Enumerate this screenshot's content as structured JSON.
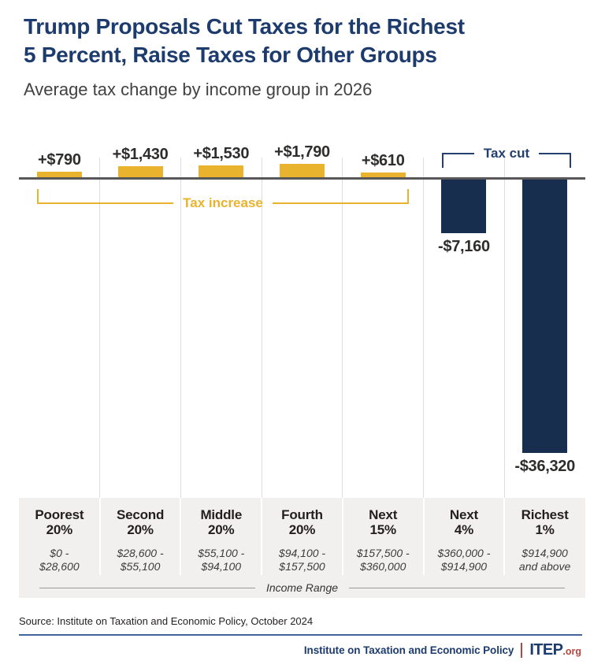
{
  "header": {
    "title_line1": "Trump Proposals Cut Taxes for the Richest",
    "title_line2": "5 Percent, Raise Taxes for Other Groups",
    "subtitle": "Average tax change by income group in 2026"
  },
  "chart_data": {
    "type": "bar",
    "title": "Average tax change by income group in 2026",
    "xlabel": "Income Range",
    "ylabel": "",
    "ylim": [
      -36320,
      1790
    ],
    "baseline": 0,
    "grid": "vertical-column-separators",
    "legend": "none",
    "categories": [
      "Poorest 20%",
      "Second 20%",
      "Middle 20%",
      "Fourth 20%",
      "Next 15%",
      "Next 4%",
      "Richest 1%"
    ],
    "values": [
      790,
      1430,
      1530,
      1790,
      610,
      -7160,
      -36320
    ],
    "value_labels": [
      "+$790",
      "+$1,430",
      "+$1,530",
      "+$1,790",
      "+$610",
      "-$7,160",
      "-$36,320"
    ],
    "income_ranges": [
      "$0 - $28,600",
      "$28,600 - $55,100",
      "$55,100 - $94,100",
      "$94,100 - $157,500",
      "$157,500 - $360,000",
      "$360,000 - $914,900",
      "$914,900 and above"
    ],
    "groups": [
      {
        "label_line1": "Poorest",
        "label_line2": "20%",
        "range_line1": "$0 -",
        "range_line2": "$28,600",
        "value": 790,
        "value_label": "+$790"
      },
      {
        "label_line1": "Second",
        "label_line2": "20%",
        "range_line1": "$28,600 -",
        "range_line2": "$55,100",
        "value": 1430,
        "value_label": "+$1,430"
      },
      {
        "label_line1": "Middle",
        "label_line2": "20%",
        "range_line1": "$55,100 -",
        "range_line2": "$94,100",
        "value": 1530,
        "value_label": "+$1,530"
      },
      {
        "label_line1": "Fourth",
        "label_line2": "20%",
        "range_line1": "$94,100 -",
        "range_line2": "$157,500",
        "value": 1790,
        "value_label": "+$1,790"
      },
      {
        "label_line1": "Next",
        "label_line2": "15%",
        "range_line1": "$157,500 -",
        "range_line2": "$360,000",
        "value": 610,
        "value_label": "+$610"
      },
      {
        "label_line1": "Next",
        "label_line2": "4%",
        "range_line1": "$360,000 -",
        "range_line2": "$914,900",
        "value": -7160,
        "value_label": "-$7,160"
      },
      {
        "label_line1": "Richest",
        "label_line2": "1%",
        "range_line1": "$914,900",
        "range_line2": "and above",
        "value": -36320,
        "value_label": "-$36,320"
      }
    ],
    "annotations": [
      {
        "text": "Tax increase",
        "color": "#E9B330",
        "applies_to": "groups 1-5 (positive bars)"
      },
      {
        "text": "Tax cut",
        "color": "#24406E",
        "applies_to": "groups 6-7 (negative bars)"
      }
    ],
    "colors": {
      "positive_bar": "#EAB32E",
      "negative_bar": "#172E4F"
    }
  },
  "footnote": {
    "source": "Source: Institute on Taxation and Economic Policy, October 2024"
  },
  "footer": {
    "org": "Institute on Taxation and Economic Policy",
    "logo_main": "ITEP",
    "logo_suffix": ".org"
  }
}
